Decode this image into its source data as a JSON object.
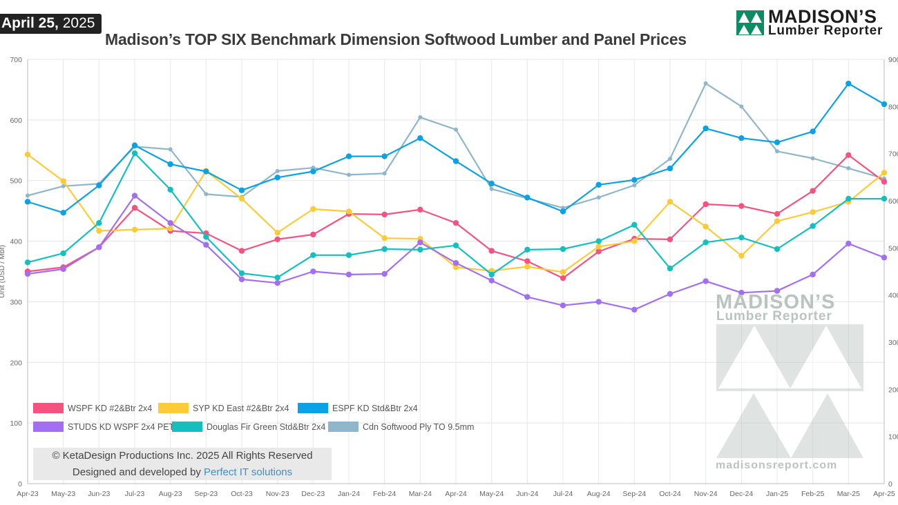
{
  "header": {
    "date_day": "April 25,",
    "date_year": "2025",
    "title": "Madison’s TOP SIX Benchmark Dimension Softwood Lumber and Panel Prices"
  },
  "logo": {
    "brand": "MADISON’S",
    "sub": "Lumber Reporter"
  },
  "watermark": {
    "brand": "MADISON’S",
    "sub": "Lumber Reporter",
    "url": "madisonsreport.com"
  },
  "credit": {
    "line1": "© KetaDesign Productions Inc. 2025 All Rights Reserved",
    "line2_prefix": "Designed and developed by",
    "link": "Perfect IT solutions"
  },
  "colors": {
    "wspf": "#f4527f",
    "syp": "#fccb37",
    "espf": "#0aa2e5",
    "studs": "#a36ef1",
    "dfir": "#14bfbf",
    "ply": "#8fb6ca",
    "logo_green": "#0f8b63",
    "watermark": "#b9c4c0"
  },
  "chart_data": {
    "type": "line",
    "title": "Madison’s TOP SIX Benchmark Dimension Softwood Lumber and Panel Prices",
    "ylabel": "Unit (USD / Mbf)",
    "ylim": [
      0,
      700
    ],
    "y2lim": [
      0,
      900
    ],
    "yticks": [
      "0",
      "100",
      "200",
      "300",
      "400",
      "500",
      "600",
      "700"
    ],
    "y2ticks": [
      "0",
      "100",
      "200",
      "300",
      "400",
      "500",
      "600",
      "700",
      "800",
      "900"
    ],
    "categories": [
      "Apr-23",
      "May-23",
      "Jun-23",
      "Jul-23",
      "Aug-23",
      "Sep-23",
      "Oct-23",
      "Nov-23",
      "Dec-23",
      "Jan-24",
      "Feb-24",
      "Mar-24",
      "Apr-24",
      "May-24",
      "Jun-24",
      "Jul-24",
      "Aug-24",
      "Sep-24",
      "Oct-24",
      "Nov-24",
      "Dec-24",
      "Jan-25",
      "Feb-25",
      "Mar-25",
      "Apr-25"
    ],
    "series": [
      {
        "key": "wspf",
        "name": "WSPF KD #2&Btr 2x4",
        "axis": "left",
        "values": [
          350,
          357,
          390,
          455,
          417,
          413,
          384,
          403,
          411,
          445,
          444,
          452,
          430,
          384,
          367,
          339,
          383,
          404,
          403,
          461,
          458,
          445,
          483,
          542,
          498
        ]
      },
      {
        "key": "syp",
        "name": "SYP KD East #2&Btr 2x4",
        "axis": "left",
        "values": [
          543,
          499,
          417,
          419,
          421,
          516,
          470,
          414,
          453,
          449,
          405,
          404,
          357,
          351,
          358,
          349,
          391,
          400,
          465,
          424,
          376,
          433,
          448,
          465,
          513
        ]
      },
      {
        "key": "espf",
        "name": "ESPF KD Std&Btr 2x4",
        "axis": "left",
        "values": [
          465,
          447,
          492,
          558,
          527,
          515,
          484,
          505,
          515,
          540,
          540,
          570,
          532,
          495,
          472,
          449,
          493,
          501,
          520,
          586,
          570,
          563,
          581,
          660,
          626
        ]
      },
      {
        "key": "studs",
        "name": "STUDS KD WSPF 2x4 PET",
        "axis": "left",
        "values": [
          346,
          354,
          390,
          475,
          430,
          394,
          337,
          331,
          350,
          345,
          346,
          398,
          364,
          335,
          308,
          294,
          300,
          287,
          313,
          334,
          315,
          318,
          345,
          396,
          373
        ]
      },
      {
        "key": "dfir",
        "name": "Douglas Fir Green Std&Btr 2x4",
        "axis": "left",
        "values": [
          365,
          380,
          430,
          545,
          485,
          407,
          347,
          340,
          377,
          377,
          387,
          386,
          393,
          345,
          386,
          387,
          400,
          427,
          355,
          398,
          406,
          387,
          425,
          470,
          470
        ]
      },
      {
        "key": "ply",
        "name": "Cdn Softwood Ply TO 9.5mm",
        "axis": "right",
        "values": [
          611,
          631,
          636,
          715,
          709,
          614,
          608,
          663,
          670,
          655,
          658,
          777,
          751,
          625,
          605,
          585,
          607,
          633,
          689,
          849,
          800,
          705,
          690,
          669,
          647
        ]
      }
    ]
  }
}
